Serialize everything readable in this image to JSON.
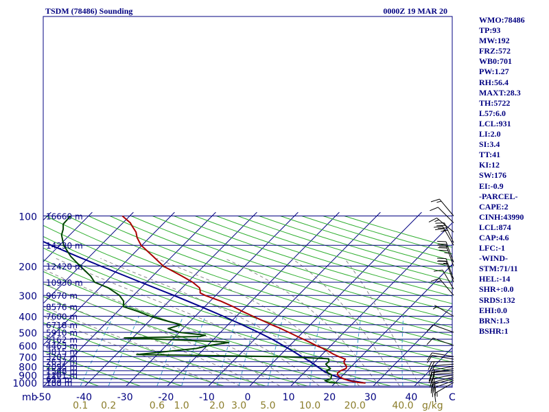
{
  "header": {
    "title": "TSDM (78486) Sounding",
    "time": "0000Z 19 MAR 20"
  },
  "chart_data": {
    "type": "skew-t",
    "pressure_axis": {
      "unit_label": "mb",
      "ticks": [
        100,
        200,
        300,
        400,
        500,
        600,
        700,
        800,
        900,
        1000
      ],
      "range": [
        100,
        1050
      ],
      "scale": "log"
    },
    "temperature_axis": {
      "ticks": [
        -50,
        -40,
        -30,
        -20,
        -10,
        0,
        10,
        20,
        30,
        40
      ],
      "tick_labels": [
        "-50",
        "-40",
        "-30",
        "-20",
        "-10",
        "0",
        "10",
        "20",
        "30",
        "40"
      ],
      "end_label": "C",
      "range": [
        -50,
        50
      ]
    },
    "mixing_ratio_axis": {
      "unit": "g/kg",
      "ticks": [
        0.1,
        0.2,
        0.6,
        1.0,
        2.0,
        3.0,
        5.0,
        10.0,
        20.0,
        40.0
      ],
      "tick_labels": [
        "0.1",
        "0.2",
        "0.6",
        "1.0",
        "2.0",
        "3.0",
        "5.0",
        "10.0",
        "20.0",
        "40.0"
      ]
    },
    "height_labels": [
      {
        "p": 100,
        "label": "16660 m"
      },
      {
        "p": 150,
        "label": "14230 m"
      },
      {
        "p": 200,
        "label": "12420 m"
      },
      {
        "p": 250,
        "label": "10930 m"
      },
      {
        "p": 300,
        "label": "9670 m"
      },
      {
        "p": 350,
        "label": "8576 m"
      },
      {
        "p": 400,
        "label": "7600 m"
      },
      {
        "p": 450,
        "label": "6718 m"
      },
      {
        "p": 500,
        "label": "5910 m"
      },
      {
        "p": 550,
        "label": "5162 m"
      },
      {
        "p": 600,
        "label": "4463 m"
      },
      {
        "p": 650,
        "label": "3815 m"
      },
      {
        "p": 700,
        "label": "3207 m"
      },
      {
        "p": 750,
        "label": "2637 m"
      },
      {
        "p": 800,
        "label": "2095 m"
      },
      {
        "p": 850,
        "label": "1588 m"
      },
      {
        "p": 900,
        "label": "1101 m"
      },
      {
        "p": 950,
        "label": "635 m"
      },
      {
        "p": 1000,
        "label": "188 m"
      }
    ],
    "temperature": {
      "name": "Temperature",
      "color": "#aa0000",
      "points": [
        [
          1008,
          27.4
        ],
        [
          1000,
          25.5
        ],
        [
          975,
          22.8
        ],
        [
          950,
          21.0
        ],
        [
          925,
          19.6
        ],
        [
          900,
          18.6
        ],
        [
          875,
          18.2
        ],
        [
          850,
          18.4
        ],
        [
          825,
          19.2
        ],
        [
          800,
          18.8
        ],
        [
          775,
          17.8
        ],
        [
          750,
          17.0
        ],
        [
          725,
          16.8
        ],
        [
          700,
          14.6
        ],
        [
          675,
          12.6
        ],
        [
          650,
          10.8
        ],
        [
          625,
          8.8
        ],
        [
          600,
          6.4
        ],
        [
          575,
          4.2
        ],
        [
          550,
          1.8
        ],
        [
          525,
          -0.8
        ],
        [
          500,
          -3.4
        ],
        [
          475,
          -6.2
        ],
        [
          450,
          -9.4
        ],
        [
          425,
          -12.6
        ],
        [
          400,
          -16.0
        ],
        [
          375,
          -19.6
        ],
        [
          350,
          -23.2
        ],
        [
          325,
          -27.4
        ],
        [
          300,
          -32.6
        ],
        [
          290,
          -34.4
        ],
        [
          280,
          -35.0
        ],
        [
          270,
          -35.8
        ],
        [
          250,
          -38.8
        ],
        [
          230,
          -42.8
        ],
        [
          200,
          -49.8
        ],
        [
          175,
          -54.6
        ],
        [
          150,
          -60.2
        ],
        [
          135,
          -63.0
        ],
        [
          125,
          -64.6
        ],
        [
          115,
          -67.0
        ],
        [
          110,
          -68.2
        ],
        [
          100,
          -71.8
        ]
      ]
    },
    "dewpoint": {
      "name": "Dewpoint",
      "color": "#004400",
      "points": [
        [
          1008,
          20.6
        ],
        [
          1000,
          18.5
        ],
        [
          975,
          17.0
        ],
        [
          950,
          18.0
        ],
        [
          925,
          17.6
        ],
        [
          900,
          17.2
        ],
        [
          875,
          15.8
        ],
        [
          850,
          15.0
        ],
        [
          825,
          15.4
        ],
        [
          800,
          14.2
        ],
        [
          775,
          13.2
        ],
        [
          750,
          13.4
        ],
        [
          720,
          12.6
        ],
        [
          700,
          0.8
        ],
        [
          680,
          -35.0
        ],
        [
          650,
          -28.0
        ],
        [
          625,
          -22.0
        ],
        [
          600,
          -19.6
        ],
        [
          575,
          -15.6
        ],
        [
          570,
          -17.2
        ],
        [
          550,
          -33.0
        ],
        [
          540,
          -42.0
        ],
        [
          530,
          -24.0
        ],
        [
          520,
          -23.0
        ],
        [
          500,
          -30.0
        ],
        [
          475,
          -33.6
        ],
        [
          450,
          -31.4
        ],
        [
          425,
          -36.2
        ],
        [
          400,
          -41.0
        ],
        [
          375,
          -45.0
        ],
        [
          350,
          -49.8
        ],
        [
          325,
          -51.0
        ],
        [
          300,
          -53.4
        ],
        [
          270,
          -58.0
        ],
        [
          250,
          -62.6
        ],
        [
          230,
          -65.0
        ],
        [
          200,
          -70.0
        ],
        [
          175,
          -74.6
        ],
        [
          150,
          -79.0
        ],
        [
          130,
          -82.0
        ],
        [
          120,
          -83.0
        ],
        [
          112,
          -84.2
        ],
        [
          100,
          -84.4
        ]
      ]
    },
    "parcel": {
      "name": "Parcel",
      "color": "#00008b",
      "points": [
        [
          1008,
          27.4
        ],
        [
          975,
          23.4
        ],
        [
          950,
          21.0
        ],
        [
          925,
          19.0
        ],
        [
          900,
          17.2
        ],
        [
          874,
          15.5
        ],
        [
          850,
          14.2
        ],
        [
          800,
          11.6
        ],
        [
          750,
          8.8
        ],
        [
          700,
          5.6
        ],
        [
          650,
          2.2
        ],
        [
          600,
          -1.6
        ],
        [
          550,
          -5.8
        ],
        [
          500,
          -10.8
        ],
        [
          450,
          -16.6
        ],
        [
          400,
          -23.2
        ],
        [
          350,
          -31.0
        ],
        [
          300,
          -40.2
        ],
        [
          250,
          -51.4
        ],
        [
          200,
          -65.0
        ],
        [
          175,
          -73.0
        ],
        [
          150,
          -82.0
        ],
        [
          130,
          -90.0
        ],
        [
          120,
          -94.0
        ]
      ]
    },
    "wind_barbs": [
      {
        "p": 1000,
        "dir": 240,
        "kt": 15
      },
      {
        "p": 975,
        "dir": 250,
        "kt": 20
      },
      {
        "p": 950,
        "dir": 255,
        "kt": 20
      },
      {
        "p": 925,
        "dir": 255,
        "kt": 20
      },
      {
        "p": 900,
        "dir": 260,
        "kt": 20
      },
      {
        "p": 875,
        "dir": 265,
        "kt": 20
      },
      {
        "p": 850,
        "dir": 265,
        "kt": 20
      },
      {
        "p": 825,
        "dir": 260,
        "kt": 15
      },
      {
        "p": 800,
        "dir": 260,
        "kt": 15
      },
      {
        "p": 775,
        "dir": 265,
        "kt": 15
      },
      {
        "p": 750,
        "dir": 270,
        "kt": 15
      },
      {
        "p": 725,
        "dir": 280,
        "kt": 10
      },
      {
        "p": 700,
        "dir": 280,
        "kt": 10
      },
      {
        "p": 600,
        "dir": 290,
        "kt": 10
      },
      {
        "p": 500,
        "dir": 290,
        "kt": 10
      },
      {
        "p": 400,
        "dir": 300,
        "kt": 5
      },
      {
        "p": 300,
        "dir": 320,
        "kt": 15
      },
      {
        "p": 275,
        "dir": 330,
        "kt": 10
      },
      {
        "p": 250,
        "dir": 340,
        "kt": 20
      },
      {
        "p": 240,
        "dir": 340,
        "kt": 25
      },
      {
        "p": 200,
        "dir": 340,
        "kt": 35
      },
      {
        "p": 190,
        "dir": 340,
        "kt": 30
      },
      {
        "p": 150,
        "dir": 330,
        "kt": 25
      },
      {
        "p": 145,
        "dir": 335,
        "kt": 35
      },
      {
        "p": 125,
        "dir": 310,
        "kt": 15
      },
      {
        "p": 110,
        "dir": 315,
        "kt": 10
      },
      {
        "p": 100,
        "dir": 320,
        "kt": 15
      }
    ]
  },
  "indices": [
    "WMO:78486",
    "TP:93",
    "MW:192",
    "FRZ:572",
    "WB0:701",
    "PW:1.27",
    "RH:56.4",
    "MAXT:28.3",
    "TH:5722",
    "L57:6.0",
    "LCL:931",
    "LI:2.0",
    "SI:3.4",
    "TT:41",
    "KI:12",
    "SW:176",
    "EI:-0.9",
    "-PARCEL-",
    "CAPE:2",
    "CINH:43990",
    "LCL:874",
    "CAP:4.6",
    "LFC:-1",
    "-WIND-",
    "STM:71/11",
    "HEL:-14",
    "SHR+:0.0",
    "SRDS:132",
    "EHI:0.0",
    "BRN:1.3",
    "BSHR:1"
  ],
  "colors": {
    "frame": "#000080",
    "isotherm": "#000080",
    "dry_adiabat": "#2fae2f",
    "moist_adiabat": "#8a8a8a",
    "mixing_ratio": "#3aa0c8"
  }
}
